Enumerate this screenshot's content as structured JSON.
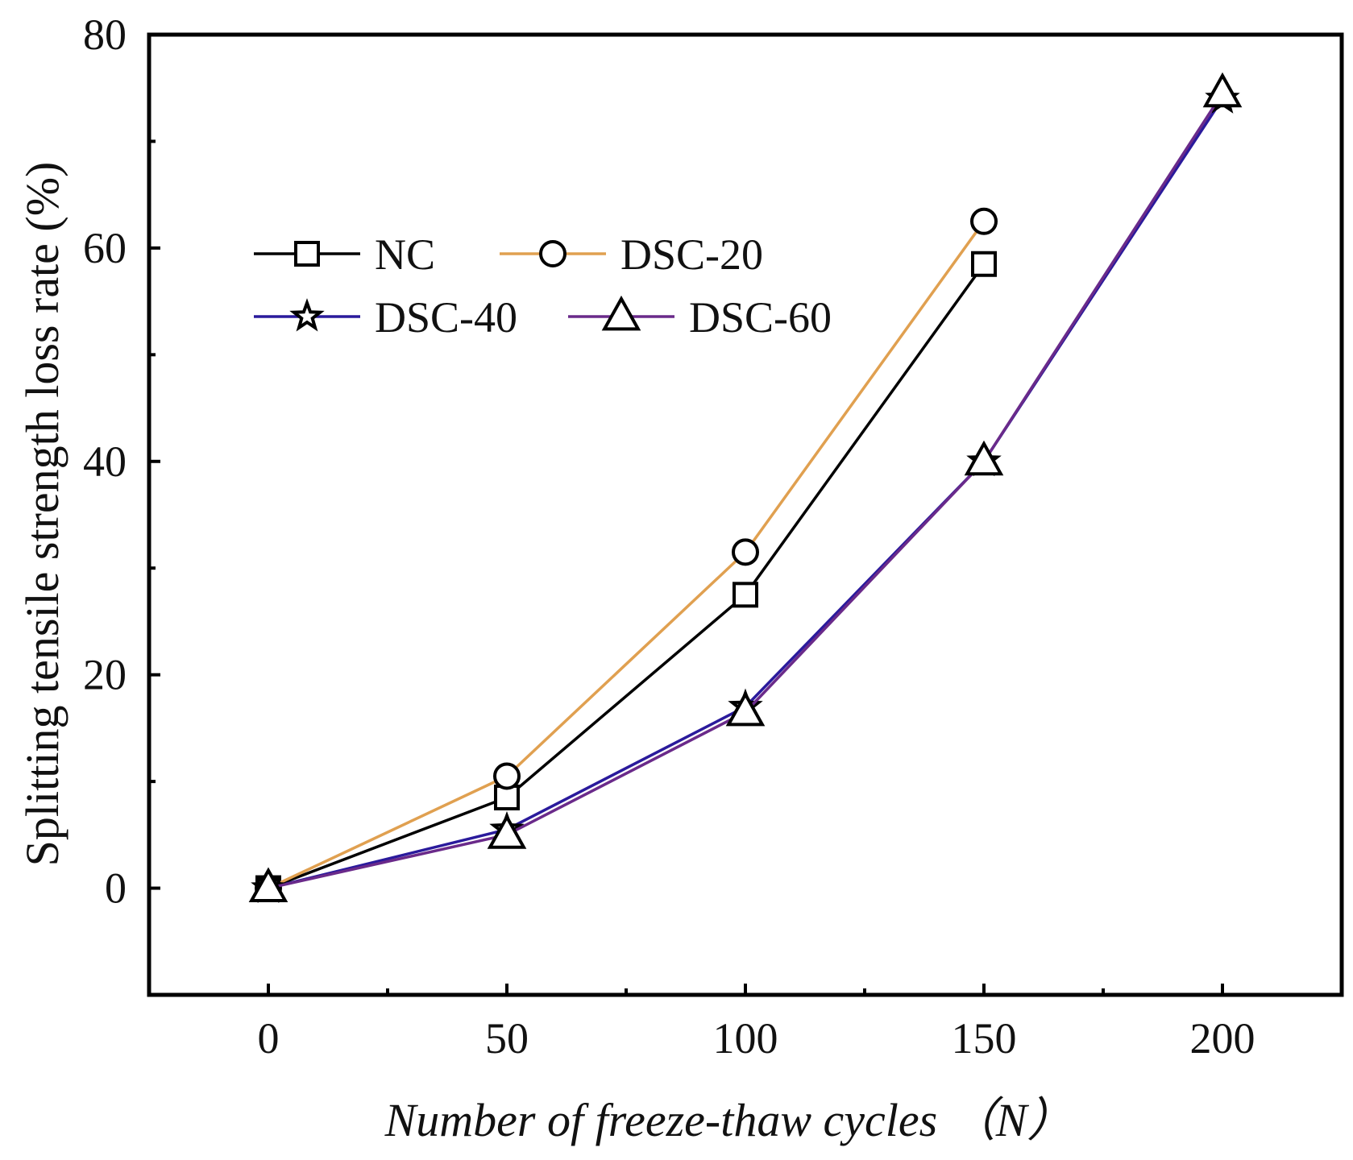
{
  "chart_data": {
    "type": "line",
    "title": "",
    "xlabel": "Number of freeze-thaw cycles （N）",
    "ylabel": "Splitting tensile strength loss rate (%)",
    "xlim": [
      -25,
      225
    ],
    "ylim": [
      -10,
      80
    ],
    "xticks": [
      0,
      50,
      100,
      150,
      200
    ],
    "yticks": [
      0,
      20,
      40,
      60,
      80
    ],
    "grid": false,
    "legend_position": "upper-left",
    "series": [
      {
        "name": "NC",
        "color": "#000000",
        "marker": "square",
        "x": [
          0,
          50,
          100,
          150
        ],
        "y": [
          0,
          8.5,
          27.5,
          58.5
        ]
      },
      {
        "name": "DSC-20",
        "color": "#e0a050",
        "marker": "circle",
        "x": [
          0,
          50,
          100,
          150
        ],
        "y": [
          0,
          10.5,
          31.5,
          62.5
        ]
      },
      {
        "name": "DSC-40",
        "color": "#2a1a9c",
        "marker": "star",
        "x": [
          0,
          50,
          100,
          150,
          200
        ],
        "y": [
          0,
          5.5,
          17,
          40,
          74
        ]
      },
      {
        "name": "DSC-60",
        "color": "#6a2a8a",
        "marker": "triangle",
        "x": [
          0,
          50,
          100,
          150,
          200
        ],
        "y": [
          0,
          5,
          16.5,
          40,
          74.5
        ]
      }
    ]
  }
}
